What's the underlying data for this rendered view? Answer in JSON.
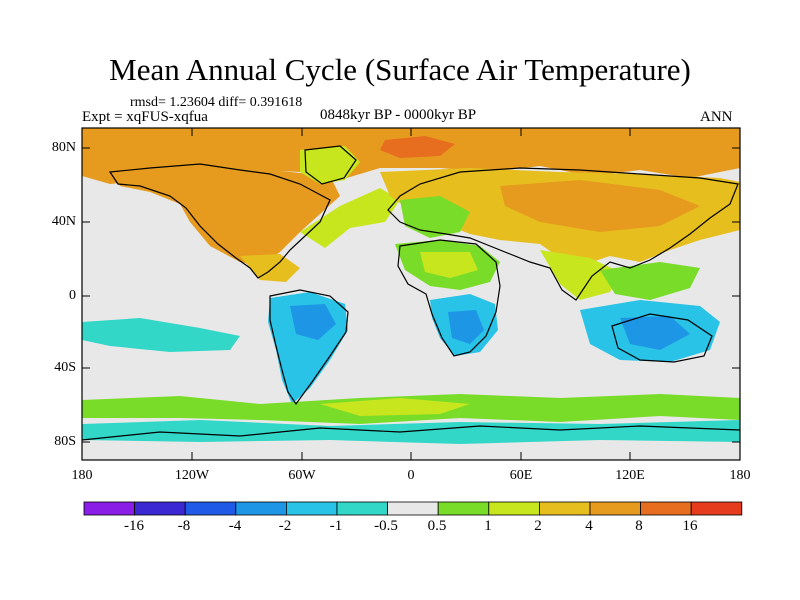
{
  "title": "Mean Annual Cycle (Surface Air Temperature)",
  "stats": "rmsd= 1.23604 diff= 0.391618",
  "experiment": "Expt = xqFUS-xqfua",
  "period": "0848kyr BP - 0000kyr BP",
  "season": "ANN",
  "lat_labels": [
    "80N",
    "40N",
    "0",
    "40S",
    "80S"
  ],
  "lon_labels": [
    "180",
    "120W",
    "60W",
    "0",
    "60E",
    "120E",
    "180"
  ],
  "colorbar": {
    "labels": [
      "-16",
      "-8",
      "-4",
      "-2",
      "-1",
      "-0.5",
      "0.5",
      "1",
      "2",
      "4",
      "8",
      "16"
    ],
    "colors": [
      "#8a1ee6",
      "#3c28d2",
      "#1e5ae6",
      "#1e96e6",
      "#28c3e6",
      "#32d7c8",
      "#e8e8e8",
      "#78dc28",
      "#c8e61e",
      "#e6be1e",
      "#e69b1e",
      "#e66e1e",
      "#e63c1e"
    ]
  },
  "palette": {
    "neutral": "#e8e8e8",
    "warm_small": "#78dc28",
    "warm_mid": "#c8e61e",
    "warm": "#e6be1e",
    "warm_high": "#e69b1e",
    "warm_very": "#e66e1e",
    "cool_small": "#32d7c8",
    "cool_mid": "#28c3e6",
    "cool": "#1e96e6"
  }
}
